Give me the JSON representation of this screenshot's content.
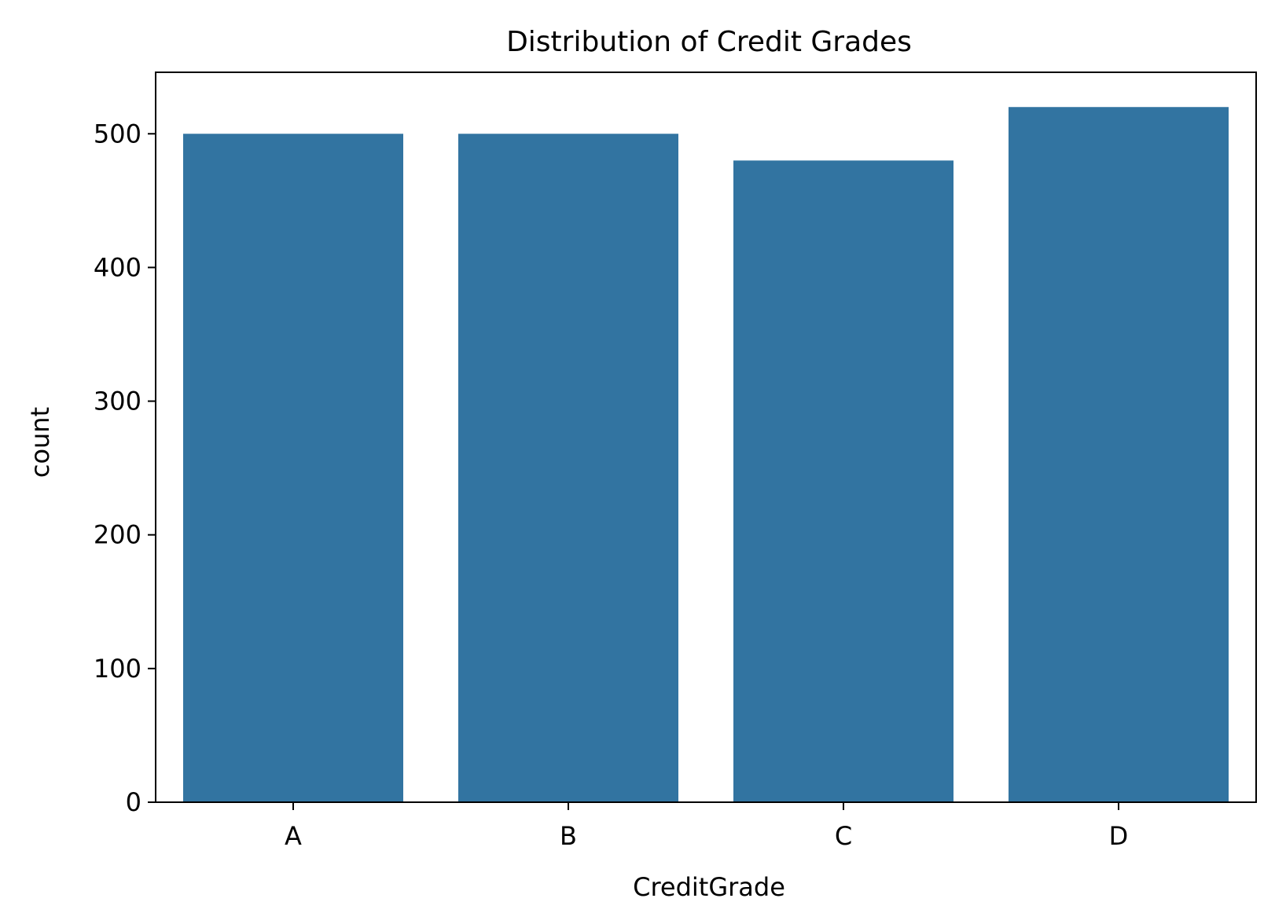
{
  "chart_data": {
    "type": "bar",
    "title": "Distribution of Credit Grades",
    "xlabel": "CreditGrade",
    "ylabel": "count",
    "categories": [
      "A",
      "B",
      "C",
      "D"
    ],
    "values": [
      500,
      500,
      480,
      520
    ],
    "ylim": [
      0,
      546
    ],
    "yticks": [
      0,
      100,
      200,
      300,
      400,
      500
    ],
    "grid": false,
    "bar_color": "#3274a1",
    "axis_color": "#000000"
  }
}
